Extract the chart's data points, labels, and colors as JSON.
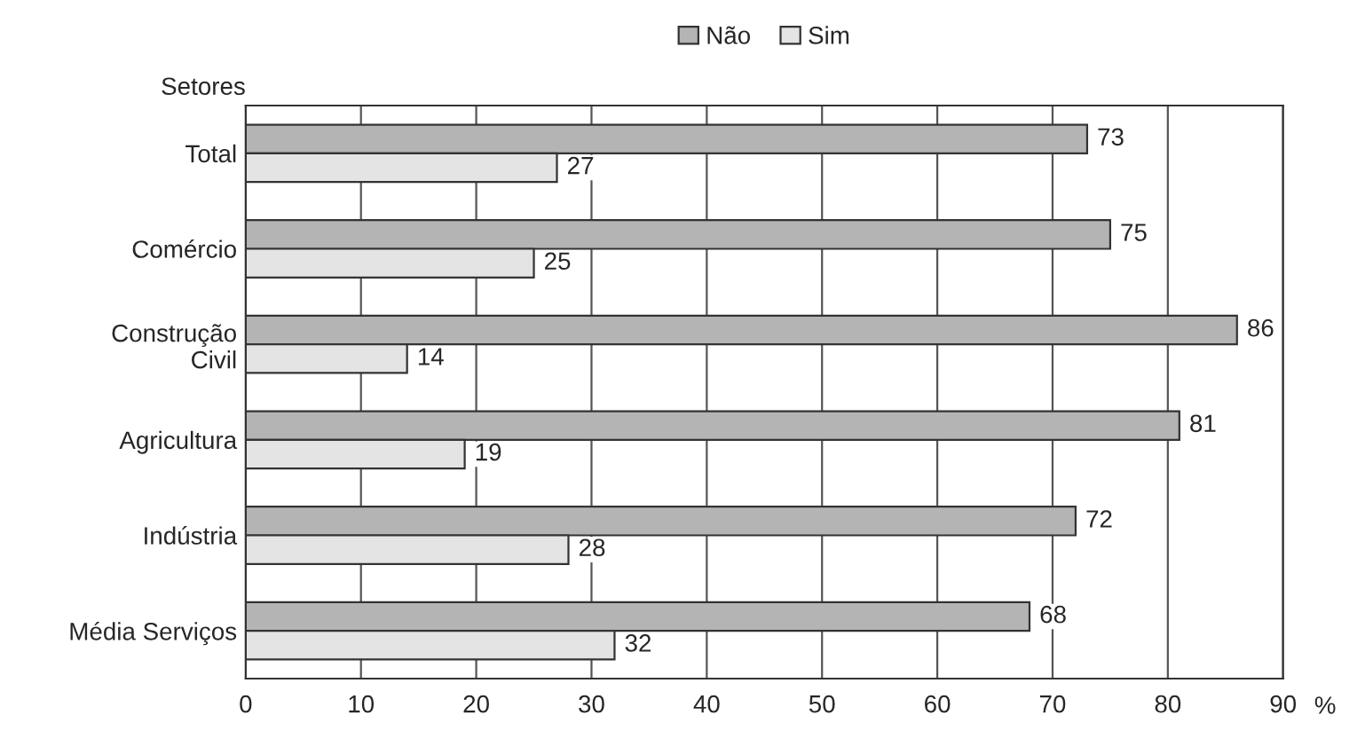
{
  "chart_data": {
    "type": "bar",
    "orientation": "horizontal",
    "categories": [
      "Total",
      "Comércio",
      "Construção\nCivil",
      "Agricultura",
      "Indústria",
      "Média Serviços"
    ],
    "series": [
      {
        "name": "Não",
        "color": "#b4b4b4",
        "values": [
          73,
          75,
          86,
          81,
          72,
          68
        ]
      },
      {
        "name": "Sim",
        "color": "#e4e4e4",
        "values": [
          27,
          25,
          14,
          19,
          28,
          32
        ]
      }
    ],
    "ylabel": "Setores",
    "xlabel": "%",
    "xlim": [
      0,
      90
    ],
    "xticks": [
      0,
      10,
      20,
      30,
      40,
      50,
      60,
      70,
      80,
      90
    ],
    "grid": "x",
    "legend": "top",
    "data_labels": true
  }
}
